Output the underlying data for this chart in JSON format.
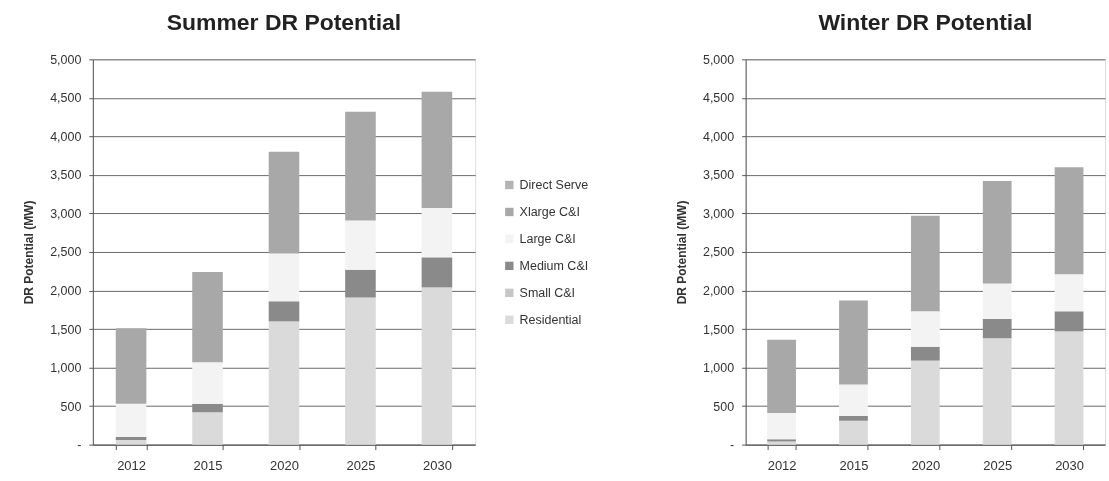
{
  "chart_data": [
    {
      "type": "bar",
      "title": "Summer DR Potential",
      "ylabel": "DR Potential (MW)",
      "categories": [
        "2012",
        "2015",
        "2020",
        "2025",
        "2030"
      ],
      "stacked": true,
      "series": [
        {
          "name": "Residential",
          "color": "#dadada",
          "values": [
            60,
            420,
            1600,
            1910,
            2040
          ]
        },
        {
          "name": "Small C&I",
          "color": "#c6c6c6",
          "values": [
            null,
            null,
            null,
            null,
            null
          ]
        },
        {
          "name": "Medium C&I",
          "color": "#8a8a8a",
          "values": [
            40,
            110,
            260,
            360,
            390
          ]
        },
        {
          "name": "Large C&I",
          "color": "#f3f3f3",
          "values": [
            430,
            540,
            620,
            640,
            640
          ]
        },
        {
          "name": "Xlarge C&I",
          "color": "#a8a8a8",
          "values": [
            980,
            1170,
            1320,
            1410,
            1510
          ]
        },
        {
          "name": "Direct Serve",
          "color": "#b4b4b4",
          "values": [
            null,
            null,
            null,
            null,
            null
          ]
        }
      ],
      "ylim": [
        0,
        5000
      ],
      "yticks": [
        {
          "value": 0,
          "label": "-"
        },
        500,
        {
          "value": 1000,
          "label": "1,000"
        },
        {
          "value": 1500,
          "label": "1,500"
        },
        {
          "value": 2000,
          "label": "2,000"
        },
        {
          "value": 2500,
          "label": "2,500"
        },
        {
          "value": 3000,
          "label": "3,000"
        },
        {
          "value": 3500,
          "label": "3,500"
        },
        {
          "value": 4000,
          "label": "4,000"
        },
        {
          "value": 4500,
          "label": "4,500"
        },
        {
          "value": 5000,
          "label": "5,000"
        }
      ],
      "grid": "y",
      "legend": "right"
    },
    {
      "type": "bar",
      "title": "Winter DR Potential",
      "ylabel": "DR Potential (MW)",
      "categories": [
        "2012",
        "2015",
        "2020",
        "2025",
        "2030"
      ],
      "stacked": true,
      "series": [
        {
          "color": "#dadada",
          "values": [
            40,
            310,
            1090,
            1380,
            1470
          ]
        },
        {
          "color": "#c6c6c6",
          "values": [
            null,
            null,
            null,
            null,
            null
          ]
        },
        {
          "color": "#8a8a8a",
          "values": [
            30,
            60,
            180,
            250,
            260
          ]
        },
        {
          "color": "#f3f3f3",
          "values": [
            340,
            410,
            460,
            460,
            480
          ]
        },
        {
          "color": "#a8a8a8",
          "values": [
            950,
            1090,
            1240,
            1330,
            1390
          ]
        },
        {
          "color": "#b4b4b4",
          "values": [
            null,
            null,
            null,
            null,
            null
          ]
        }
      ],
      "ylim": [
        0,
        5000
      ],
      "yticks": [
        {
          "value": 0,
          "label": "-"
        },
        500,
        {
          "value": 1000,
          "label": "1,000"
        },
        {
          "value": 1500,
          "label": "1,500"
        },
        {
          "value": 2000,
          "label": "2,000"
        },
        {
          "value": 2500,
          "label": "2,500"
        },
        {
          "value": 3000,
          "label": "3,000"
        },
        {
          "value": 3500,
          "label": "3,500"
        },
        {
          "value": 4000,
          "label": "4,000"
        },
        {
          "value": 4500,
          "label": "4,500"
        },
        {
          "value": 5000,
          "label": "5,000"
        }
      ],
      "grid": "y",
      "legend": false
    }
  ]
}
